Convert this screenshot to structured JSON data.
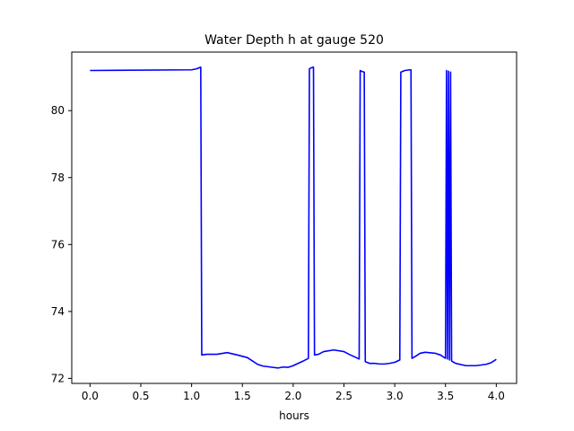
{
  "chart_data": {
    "type": "line",
    "title": "Water Depth h at gauge 520",
    "xlabel": "hours",
    "ylabel": "",
    "xlim": [
      -0.18,
      4.2
    ],
    "ylim": [
      71.85,
      81.75
    ],
    "xticks": [
      0,
      0.5,
      1,
      1.5,
      2,
      2.5,
      3,
      3.5,
      4
    ],
    "xtick_labels": [
      "0.0",
      "0.5",
      "1.0",
      "1.5",
      "2.0",
      "2.5",
      "3.0",
      "3.5",
      "4.0"
    ],
    "yticks": [
      72,
      74,
      76,
      78,
      80
    ],
    "ytick_labels": [
      "72",
      "74",
      "76",
      "78",
      "80"
    ],
    "grid": false,
    "series": [
      {
        "color": "#0000ff",
        "x": [
          0.0,
          1.0,
          1.05,
          1.09,
          1.1,
          1.15,
          1.25,
          1.35,
          1.45,
          1.55,
          1.6,
          1.65,
          1.7,
          1.8,
          1.85,
          1.9,
          1.95,
          2.0,
          2.05,
          2.1,
          2.15,
          2.16,
          2.17,
          2.2,
          2.21,
          2.25,
          2.3,
          2.4,
          2.5,
          2.55,
          2.6,
          2.65,
          2.66,
          2.67,
          2.7,
          2.71,
          2.75,
          2.8,
          2.85,
          2.9,
          2.95,
          3.0,
          3.05,
          3.06,
          3.1,
          3.15,
          3.16,
          3.17,
          3.2,
          3.25,
          3.3,
          3.4,
          3.45,
          3.5,
          3.51,
          3.52,
          3.53,
          3.54,
          3.55,
          3.56,
          3.6,
          3.7,
          3.8,
          3.9,
          3.95,
          4.0
        ],
        "y": [
          81.2,
          81.22,
          81.25,
          81.3,
          72.7,
          72.72,
          72.72,
          72.77,
          72.7,
          72.62,
          72.52,
          72.42,
          72.37,
          72.33,
          72.31,
          72.34,
          72.33,
          72.38,
          72.45,
          72.52,
          72.6,
          81.25,
          81.27,
          81.3,
          72.7,
          72.72,
          72.8,
          72.85,
          72.8,
          72.72,
          72.65,
          72.58,
          81.2,
          81.18,
          81.15,
          72.5,
          72.45,
          72.45,
          72.43,
          72.43,
          72.45,
          72.48,
          72.55,
          81.15,
          81.2,
          81.22,
          81.22,
          72.6,
          72.65,
          72.75,
          72.78,
          72.75,
          72.7,
          72.6,
          81.2,
          72.58,
          81.18,
          72.55,
          81.15,
          72.52,
          72.45,
          72.38,
          72.38,
          72.42,
          72.47,
          72.57
        ]
      }
    ]
  }
}
